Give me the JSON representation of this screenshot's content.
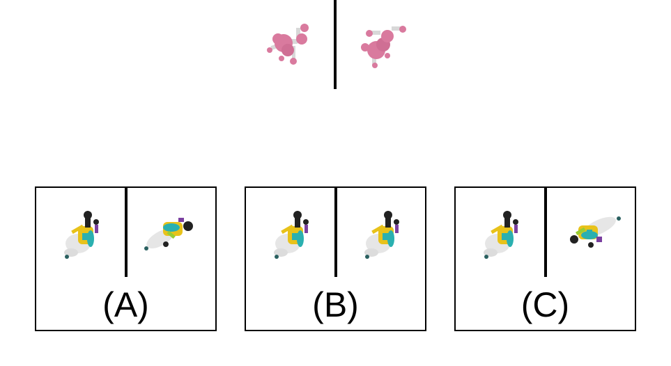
{
  "colors": {
    "background": "#ffffff",
    "line": "#000000",
    "molecule_pink": "#d97a9e",
    "molecule_pink_dark": "#b85a80",
    "stick_grey": "#d8d8d8",
    "scooter_white": "#e6e6e6",
    "scooter_yellow": "#e8c21a",
    "scooter_teal": "#2ab0b0",
    "scooter_black": "#222222",
    "scooter_purple": "#7a3fa0",
    "scooter_green": "#9acd32"
  },
  "reference": {
    "left_icon": "pink-molecule-icon",
    "right_icon": "pink-molecule-rotated-icon"
  },
  "options": [
    {
      "label": "(A)",
      "left_icon": "scooter-rider-icon",
      "right_icon": "scooter-rider-rotated-icon"
    },
    {
      "label": "(B)",
      "left_icon": "scooter-rider-icon",
      "right_icon": "scooter-rider-icon"
    },
    {
      "label": "(C)",
      "left_icon": "scooter-rider-icon",
      "right_icon": "scooter-rider-rotated-icon"
    }
  ]
}
